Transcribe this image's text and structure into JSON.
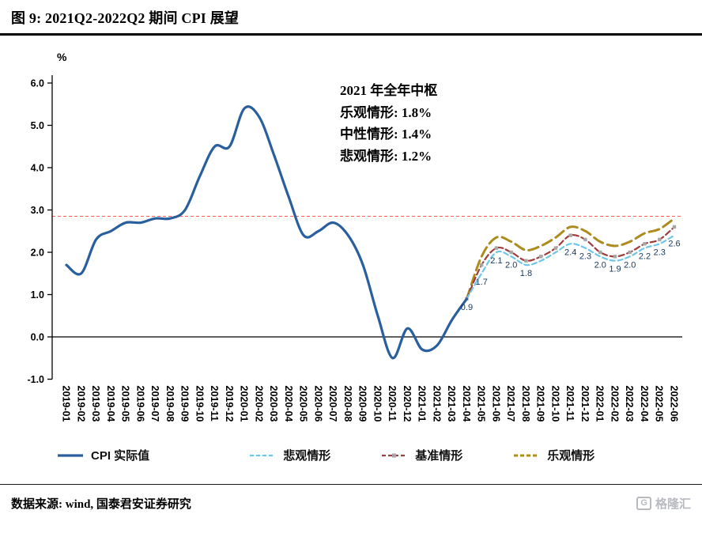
{
  "header": {
    "title": "图 9: 2021Q2-2022Q2 期间 CPI 展望"
  },
  "annotation": {
    "title": "2021 年全年中枢",
    "lines": [
      "乐观情形: 1.8%",
      "中性情形: 1.4%",
      "悲观情形: 1.2%"
    ]
  },
  "legend": {
    "items": [
      {
        "label": "CPI 实际值"
      },
      {
        "label": "悲观情形"
      },
      {
        "label": "基准情形"
      },
      {
        "label": "乐观情形"
      }
    ]
  },
  "footer": {
    "source": "数据来源: wind, 国泰君安证券研究",
    "watermark_badge": "G",
    "watermark_text": "格隆汇"
  },
  "chart_data": {
    "type": "line",
    "title": "2021Q2-2022Q2 期间 CPI 展望",
    "ylabel": "%",
    "ylim": [
      -1.0,
      6.0
    ],
    "y_ticks": [
      "6.0",
      "5.0",
      "4.0",
      "3.0",
      "2.0",
      "1.0",
      "0.0",
      "-1.0"
    ],
    "categories": [
      "2019-01",
      "2019-02",
      "2019-03",
      "2019-04",
      "2019-05",
      "2019-06",
      "2019-07",
      "2019-08",
      "2019-09",
      "2019-10",
      "2019-11",
      "2019-12",
      "2020-01",
      "2020-02",
      "2020-03",
      "2020-04",
      "2020-05",
      "2020-06",
      "2020-07",
      "2020-08",
      "2020-09",
      "2020-10",
      "2020-11",
      "2020-12",
      "2021-01",
      "2021-02",
      "2021-03",
      "2021-04",
      "2021-05",
      "2021-06",
      "2021-07",
      "2021-08",
      "2021-09",
      "2021-10",
      "2021-11",
      "2021-12",
      "2022-01",
      "2022-02",
      "2022-03",
      "2022-04",
      "2022-05",
      "2022-06"
    ],
    "series": [
      {
        "key": "cpi-actual",
        "name": "CPI实际值",
        "color": "#2a5f9e",
        "style": "solid",
        "values": [
          1.7,
          1.5,
          2.3,
          2.5,
          2.7,
          2.7,
          2.8,
          2.8,
          3.0,
          3.8,
          4.5,
          4.5,
          5.4,
          5.2,
          4.3,
          3.3,
          2.4,
          2.5,
          2.7,
          2.4,
          1.7,
          0.5,
          -0.5,
          0.2,
          -0.3,
          -0.2,
          0.4,
          0.9,
          null,
          null,
          null,
          null,
          null,
          null,
          null,
          null,
          null,
          null,
          null,
          null,
          null,
          null
        ]
      },
      {
        "key": "pessimistic",
        "name": "悲观情形",
        "color": "#6fc6e9",
        "style": "dashed",
        "values": [
          null,
          null,
          null,
          null,
          null,
          null,
          null,
          null,
          null,
          null,
          null,
          null,
          null,
          null,
          null,
          null,
          null,
          null,
          null,
          null,
          null,
          null,
          null,
          null,
          null,
          null,
          null,
          0.9,
          1.5,
          2.0,
          1.9,
          1.7,
          1.8,
          2.0,
          2.2,
          2.1,
          1.9,
          1.8,
          1.9,
          2.1,
          2.2,
          2.4
        ]
      },
      {
        "key": "baseline",
        "name": "基准情形",
        "color": "#9e3d3c",
        "style": "dash-square",
        "marker_color": "#a6a6a6",
        "values": [
          null,
          null,
          null,
          null,
          null,
          null,
          null,
          null,
          null,
          null,
          null,
          null,
          null,
          null,
          null,
          null,
          null,
          null,
          null,
          null,
          null,
          null,
          null,
          null,
          null,
          null,
          null,
          0.9,
          1.7,
          2.1,
          2.0,
          1.8,
          1.9,
          2.1,
          2.4,
          2.3,
          2.0,
          1.9,
          2.0,
          2.2,
          2.3,
          2.6
        ]
      },
      {
        "key": "optimistic",
        "name": "乐观情形",
        "color": "#ad8c1f",
        "style": "long-dash",
        "values": [
          null,
          null,
          null,
          null,
          null,
          null,
          null,
          null,
          null,
          null,
          null,
          null,
          null,
          null,
          null,
          null,
          null,
          null,
          null,
          null,
          null,
          null,
          null,
          null,
          null,
          null,
          null,
          0.9,
          1.9,
          2.35,
          2.25,
          2.05,
          2.15,
          2.35,
          2.6,
          2.5,
          2.25,
          2.15,
          2.25,
          2.45,
          2.55,
          2.8
        ]
      }
    ],
    "reference_line": {
      "value": 2.85,
      "color": "#ff5f57",
      "style": "dashed"
    },
    "point_labels": [
      {
        "index": 27,
        "text": "0.9"
      },
      {
        "index": 28,
        "text": "1.7"
      },
      {
        "index": 29,
        "text": "2.1"
      },
      {
        "index": 30,
        "text": "2.0"
      },
      {
        "index": 31,
        "text": "1.8"
      },
      {
        "index": 34,
        "text": "2.4"
      },
      {
        "index": 35,
        "text": "2.3"
      },
      {
        "index": 36,
        "text": "2.0"
      },
      {
        "index": 37,
        "text": "1.9"
      },
      {
        "index": 38,
        "text": "2.0"
      },
      {
        "index": 39,
        "text": "2.2"
      },
      {
        "index": 40,
        "text": "2.3"
      },
      {
        "index": 41,
        "text": "2.6"
      }
    ],
    "legend_position": "bottom",
    "grid": false
  }
}
